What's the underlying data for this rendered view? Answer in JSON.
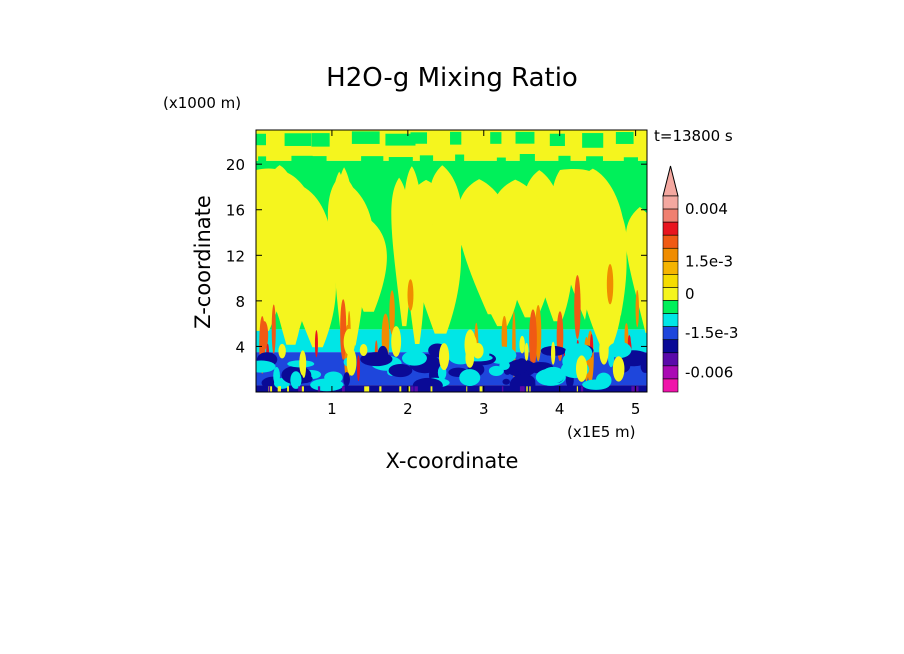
{
  "chart_data": {
    "type": "heatmap",
    "title": "H2O-g Mixing Ratio",
    "xlabel": "X-coordinate",
    "ylabel": "Z-coordinate",
    "x_units": "(x1E5 m)",
    "y_units": "(x1000 m)",
    "time_label": "t=13800 s",
    "xlim": [
      0,
      5.15
    ],
    "ylim": [
      0,
      23
    ],
    "x_ticks": [
      {
        "value": 1,
        "label": "1"
      },
      {
        "value": 2,
        "label": "2"
      },
      {
        "value": 3,
        "label": "3"
      },
      {
        "value": 4,
        "label": "4"
      },
      {
        "value": 5,
        "label": "5"
      }
    ],
    "y_ticks": [
      {
        "value": 4,
        "label": "4"
      },
      {
        "value": 8,
        "label": "8"
      },
      {
        "value": 12,
        "label": "12"
      },
      {
        "value": 16,
        "label": "16"
      },
      {
        "value": 20,
        "label": "20"
      }
    ],
    "colorbar": {
      "levels_top_to_bottom": [
        {
          "color": "#f4a8a0"
        },
        {
          "color": "#f08070"
        },
        {
          "color": "#e8141e"
        },
        {
          "color": "#f05a14"
        },
        {
          "color": "#f08c00"
        },
        {
          "color": "#f5b400"
        },
        {
          "color": "#f5dc00"
        },
        {
          "color": "#f5f51e"
        },
        {
          "color": "#00f05a"
        },
        {
          "color": "#00e6e6"
        },
        {
          "color": "#1e46dc"
        },
        {
          "color": "#0a0a96"
        },
        {
          "color": "#5a0aaa"
        },
        {
          "color": "#aa0ab4"
        },
        {
          "color": "#f014aa"
        }
      ],
      "labels": [
        {
          "text": "0.004",
          "at_level": 1
        },
        {
          "text": "1.5e-3",
          "at_level": 5
        },
        {
          "text": "0",
          "at_level": 7.5
        },
        {
          "text": "-1.5e-3",
          "at_level": 10.5
        },
        {
          "text": "-0.006",
          "at_level": 13.5
        }
      ]
    },
    "field_bands": [
      {
        "z_min": 0,
        "z_max": 0.6,
        "dominant": "#0a0a96"
      },
      {
        "z_min": 0.6,
        "z_max": 3.5,
        "dominant": "#1e46dc"
      },
      {
        "z_min": 3.5,
        "z_max": 5.5,
        "dominant": "#00e6e6"
      },
      {
        "z_min": 5.5,
        "z_max": 20.3,
        "dominant": "#00f05a"
      },
      {
        "z_min": 20.3,
        "z_max": 23,
        "dominant": "#f5f51e"
      }
    ]
  }
}
